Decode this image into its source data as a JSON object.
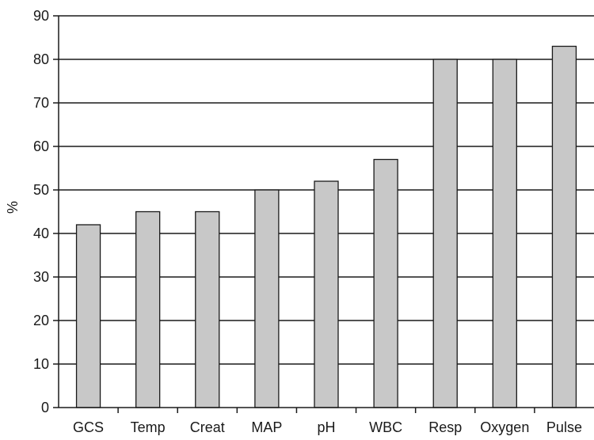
{
  "chart_data": {
    "type": "bar",
    "title": "",
    "xlabel": "",
    "ylabel": "%",
    "categories": [
      "GCS",
      "Temp",
      "Creat",
      "MAP",
      "pH",
      "WBC",
      "Resp",
      "Oxygen",
      "Pulse"
    ],
    "values": [
      42,
      45,
      45,
      50,
      52,
      57,
      80,
      80,
      83
    ],
    "ylim": [
      0,
      90
    ],
    "yticks": [
      0,
      10,
      20,
      30,
      40,
      50,
      60,
      70,
      80,
      90
    ],
    "grid": true,
    "legend": "none",
    "colors": {
      "bar_fill": "#c8c8c8",
      "bar_stroke": "#1a1a1a",
      "gridline": "#1a1a1a",
      "axis": "#1a1a1a"
    }
  }
}
